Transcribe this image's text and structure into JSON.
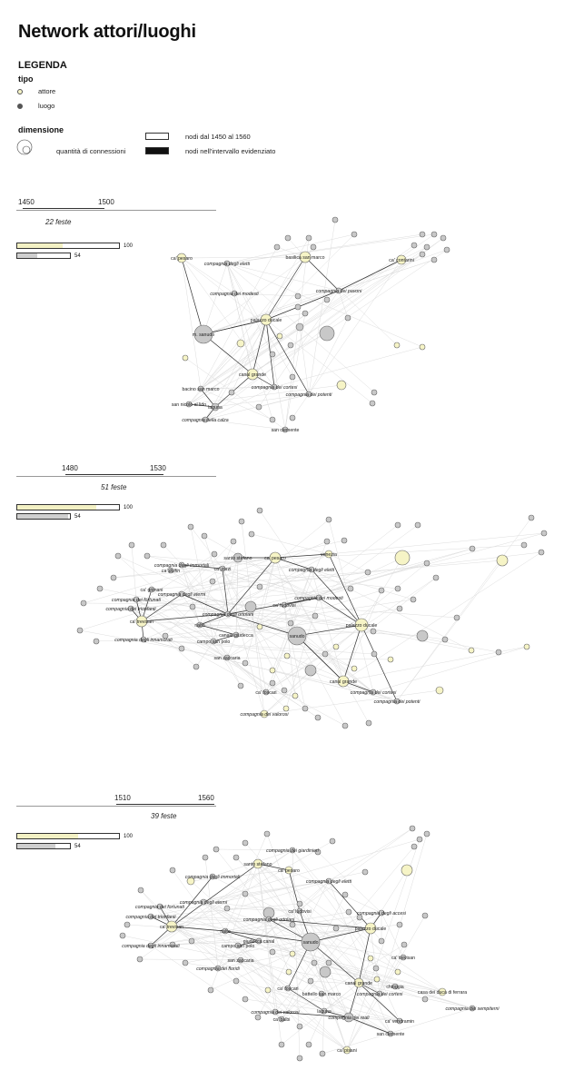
{
  "title": "Network attori/luoghi",
  "legend": {
    "heading": "LEGENDA",
    "tipo_heading": "tipo",
    "attore": "attore",
    "luogo": "luogo",
    "dimensione_heading": "dimensione",
    "connessioni": "quantità di connessioni",
    "nodi_range": "nodi dal 1450 al 1560",
    "nodi_highlight": "nodi nell'intervallo evidenziato"
  },
  "colors": {
    "attore": "#f6f4c6",
    "luogo": "#c8c8c8",
    "edge_light": "#dddddd",
    "edge_dark": "#333333"
  },
  "panels": [
    {
      "range_start": "1450",
      "range_end": "1500",
      "feste": "22 feste",
      "bar1": {
        "fraction": 0.45,
        "label": "100"
      },
      "bar2": {
        "fraction": 0.38,
        "label": "54"
      },
      "labels": [
        "ca' pesaro",
        "compagnia degli eletti",
        "basilica san marco",
        "ca' contarini",
        "compagnia dei pavoni",
        "compagnia dei modesti",
        "palazzo ducale",
        "m. sanudo",
        "canal grande",
        "compagnia dei cortesi",
        "compagnia dei potenti",
        "bacino san marco",
        "san nicolò al lido",
        "laguna",
        "compagnia della calza",
        "san clemente"
      ]
    },
    {
      "range_start": "1480",
      "range_end": "1530",
      "feste": "51 feste",
      "bar1": {
        "fraction": 0.78,
        "label": "100"
      },
      "bar2": {
        "fraction": 0.96,
        "label": "54"
      },
      "labels": [
        "santo stefano",
        "ca' pesaro",
        "venezia",
        "compagnia degli immortali",
        "compagnia degli eletti",
        "ca' dolfin",
        "ca' zorzi",
        "ca' grimani",
        "compagnia degli eterni",
        "compagnia dei fortunati",
        "compagnia dei trionfanti",
        "ca' trevisan",
        "compagnia degli ortolani",
        "compagnia dei modesti",
        "ca' ludovisi",
        "rialto",
        "canale giudecca",
        "campo san polo",
        "sanudo",
        "palazzo ducale",
        "compagnia degli innamorati",
        "san zaccaria",
        "canal grande",
        "ca' foscari",
        "compagnia dei cortesi",
        "compagnia dei potenti",
        "compagnia dei valorosi"
      ]
    },
    {
      "range_start": "1510",
      "range_end": "1560",
      "feste": "39 feste",
      "bar1": {
        "fraction": 0.6,
        "label": "100"
      },
      "bar2": {
        "fraction": 0.72,
        "label": "54"
      },
      "labels": [
        "compagnia dei giardinieri",
        "santo stefano",
        "ca' pesaro",
        "compagnia degli immortali",
        "compagnia degli eletti",
        "compagnia degli eterni",
        "compagnia dei fortunati",
        "compagnia dei trionfanti",
        "ca' trevisan",
        "compagnia degli ortolani",
        "ca' ludovisi",
        "compagnia degli accesi",
        "palazzo ducale",
        "rialto",
        "giudecca canal",
        "campo san polo",
        "compagnia degli innamorati",
        "compagnia dei floridi",
        "san zaccaria",
        "sanudo",
        "ca' trevisan",
        "ca' foscari",
        "canal grande",
        "battello san marco",
        "laguna",
        "compagnia dei valorosi",
        "compagnia dei cortesi",
        "chioggia",
        "casa dei duca di ferrara",
        "compagnia dei sempiterni",
        "ca' vendramin",
        "compagnia dei reali",
        "ca' balbi",
        "san clemente",
        "ca' pisani"
      ]
    }
  ]
}
